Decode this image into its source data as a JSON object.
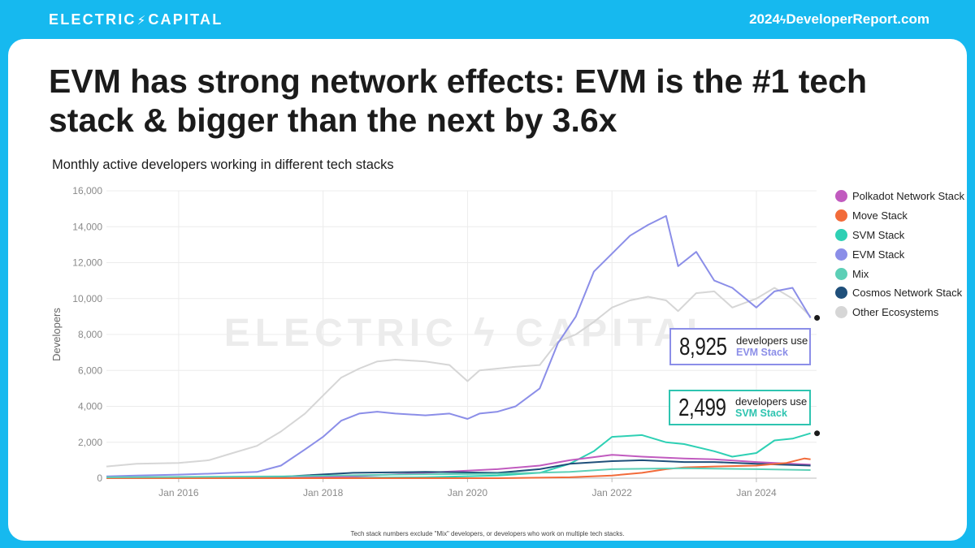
{
  "header": {
    "brand_left": "ELECTRIC",
    "brand_right": "CAPITAL",
    "brand_bolt": "⚡",
    "site_year": "2024",
    "site_domain": "DeveloperReport.com",
    "site_bolt": "ϟ"
  },
  "title": "EVM has strong network effects: EVM is the #1 tech stack & bigger than the next by 3.6x",
  "subtitle": "Monthly active developers working in different tech stacks",
  "footnote": "Tech stack numbers exclude \"Mix\" developers, or developers who work on multiple tech stacks.",
  "watermark": "ELECTRIC ϟ CAPITAL",
  "callouts": [
    {
      "value": "8,925",
      "line1": "developers use",
      "line2": "EVM Stack",
      "color": "#8b8ee8"
    },
    {
      "value": "2,499",
      "line1": "developers use",
      "line2": "SVM Stack",
      "color": "#2ec4b0"
    }
  ],
  "legend": [
    {
      "label": "Polkadot Network Stack",
      "color": "#c15bbf"
    },
    {
      "label": "Move Stack",
      "color": "#f26b3a"
    },
    {
      "label": "SVM Stack",
      "color": "#2ed0b4"
    },
    {
      "label": "EVM Stack",
      "color": "#8b8ee8"
    },
    {
      "label": "Mix",
      "color": "#5ccfb6"
    },
    {
      "label": "Cosmos Network Stack",
      "color": "#1f4f7a"
    },
    {
      "label": "Other Ecosystems",
      "color": "#d6d6d6"
    }
  ],
  "chart_data": {
    "type": "line",
    "title": "Monthly active developers working in different tech stacks",
    "xlabel": "",
    "ylabel": "Developers",
    "ylim": [
      0,
      16000
    ],
    "xlim": [
      "2015-01",
      "2024-11"
    ],
    "yticks": [
      "0",
      "2,000",
      "4,000",
      "6,000",
      "8,000",
      "10,000",
      "12,000",
      "14,000",
      "16,000"
    ],
    "xticks": [
      {
        "date": "2016-01",
        "label": "Jan 2016"
      },
      {
        "date": "2018-01",
        "label": "Jan 2018"
      },
      {
        "date": "2020-01",
        "label": "Jan 2020"
      },
      {
        "date": "2022-01",
        "label": "Jan 2022"
      },
      {
        "date": "2024-01",
        "label": "Jan 2024"
      }
    ],
    "grid": true,
    "legend_position": "right",
    "series": [
      {
        "name": "Other Ecosystems",
        "color": "#d6d6d6",
        "points": [
          [
            "2015-01",
            650
          ],
          [
            "2015-06",
            800
          ],
          [
            "2016-01",
            850
          ],
          [
            "2016-06",
            1000
          ],
          [
            "2016-10",
            1400
          ],
          [
            "2017-02",
            1800
          ],
          [
            "2017-06",
            2600
          ],
          [
            "2017-10",
            3600
          ],
          [
            "2018-01",
            4600
          ],
          [
            "2018-04",
            5600
          ],
          [
            "2018-07",
            6100
          ],
          [
            "2018-10",
            6500
          ],
          [
            "2019-01",
            6600
          ],
          [
            "2019-06",
            6500
          ],
          [
            "2019-10",
            6300
          ],
          [
            "2020-01",
            5400
          ],
          [
            "2020-03",
            6000
          ],
          [
            "2020-06",
            6100
          ],
          [
            "2020-09",
            6200
          ],
          [
            "2021-01",
            6300
          ],
          [
            "2021-04",
            7600
          ],
          [
            "2021-07",
            8000
          ],
          [
            "2021-10",
            8700
          ],
          [
            "2022-01",
            9500
          ],
          [
            "2022-04",
            9900
          ],
          [
            "2022-07",
            10100
          ],
          [
            "2022-10",
            9900
          ],
          [
            "2022-12",
            9300
          ],
          [
            "2023-03",
            10300
          ],
          [
            "2023-06",
            10400
          ],
          [
            "2023-09",
            9500
          ],
          [
            "2024-01",
            10000
          ],
          [
            "2024-04",
            10600
          ],
          [
            "2024-07",
            10000
          ],
          [
            "2024-10",
            9000
          ]
        ]
      },
      {
        "name": "EVM Stack",
        "color": "#8b8ee8",
        "points": [
          [
            "2015-01",
            100
          ],
          [
            "2015-06",
            150
          ],
          [
            "2016-01",
            200
          ],
          [
            "2016-06",
            250
          ],
          [
            "2016-10",
            300
          ],
          [
            "2017-02",
            350
          ],
          [
            "2017-06",
            700
          ],
          [
            "2017-10",
            1600
          ],
          [
            "2018-01",
            2300
          ],
          [
            "2018-04",
            3200
          ],
          [
            "2018-07",
            3600
          ],
          [
            "2018-10",
            3700
          ],
          [
            "2019-01",
            3600
          ],
          [
            "2019-06",
            3500
          ],
          [
            "2019-10",
            3600
          ],
          [
            "2020-01",
            3300
          ],
          [
            "2020-03",
            3600
          ],
          [
            "2020-06",
            3700
          ],
          [
            "2020-09",
            4000
          ],
          [
            "2021-01",
            5000
          ],
          [
            "2021-04",
            7500
          ],
          [
            "2021-07",
            9000
          ],
          [
            "2021-10",
            11500
          ],
          [
            "2022-01",
            12500
          ],
          [
            "2022-04",
            13500
          ],
          [
            "2022-07",
            14100
          ],
          [
            "2022-10",
            14600
          ],
          [
            "2022-12",
            11800
          ],
          [
            "2023-03",
            12600
          ],
          [
            "2023-06",
            11000
          ],
          [
            "2023-09",
            10600
          ],
          [
            "2024-01",
            9500
          ],
          [
            "2024-04",
            10400
          ],
          [
            "2024-07",
            10600
          ],
          [
            "2024-10",
            8925
          ]
        ]
      },
      {
        "name": "SVM Stack",
        "color": "#2ed0b4",
        "points": [
          [
            "2015-01",
            0
          ],
          [
            "2017-01",
            0
          ],
          [
            "2019-06",
            50
          ],
          [
            "2020-06",
            150
          ],
          [
            "2021-01",
            300
          ],
          [
            "2021-06",
            800
          ],
          [
            "2021-10",
            1500
          ],
          [
            "2022-01",
            2300
          ],
          [
            "2022-06",
            2400
          ],
          [
            "2022-10",
            2000
          ],
          [
            "2023-01",
            1900
          ],
          [
            "2023-06",
            1500
          ],
          [
            "2023-09",
            1200
          ],
          [
            "2024-01",
            1400
          ],
          [
            "2024-04",
            2100
          ],
          [
            "2024-07",
            2200
          ],
          [
            "2024-10",
            2499
          ]
        ]
      },
      {
        "name": "Polkadot Network Stack",
        "color": "#c15bbf",
        "points": [
          [
            "2015-01",
            0
          ],
          [
            "2017-06",
            30
          ],
          [
            "2018-06",
            100
          ],
          [
            "2019-06",
            300
          ],
          [
            "2020-06",
            500
          ],
          [
            "2021-01",
            700
          ],
          [
            "2021-06",
            1000
          ],
          [
            "2022-01",
            1300
          ],
          [
            "2022-06",
            1200
          ],
          [
            "2023-01",
            1100
          ],
          [
            "2023-06",
            1050
          ],
          [
            "2024-01",
            900
          ],
          [
            "2024-10",
            750
          ]
        ]
      },
      {
        "name": "Cosmos Network Stack",
        "color": "#1f4f7a",
        "points": [
          [
            "2015-01",
            0
          ],
          [
            "2017-06",
            80
          ],
          [
            "2018-06",
            300
          ],
          [
            "2019-06",
            350
          ],
          [
            "2020-06",
            300
          ],
          [
            "2021-01",
            500
          ],
          [
            "2021-06",
            800
          ],
          [
            "2022-01",
            950
          ],
          [
            "2022-06",
            1000
          ],
          [
            "2023-01",
            900
          ],
          [
            "2023-06",
            900
          ],
          [
            "2024-01",
            800
          ],
          [
            "2024-10",
            700
          ]
        ]
      },
      {
        "name": "Move Stack",
        "color": "#f26b3a",
        "points": [
          [
            "2015-01",
            0
          ],
          [
            "2020-06",
            0
          ],
          [
            "2021-06",
            50
          ],
          [
            "2022-01",
            150
          ],
          [
            "2022-06",
            300
          ],
          [
            "2022-10",
            500
          ],
          [
            "2023-01",
            600
          ],
          [
            "2023-06",
            650
          ],
          [
            "2024-01",
            700
          ],
          [
            "2024-06",
            850
          ],
          [
            "2024-09",
            1100
          ],
          [
            "2024-10",
            1050
          ]
        ]
      },
      {
        "name": "Mix",
        "color": "#5ccfb6",
        "points": [
          [
            "2015-01",
            50
          ],
          [
            "2017-06",
            100
          ],
          [
            "2019-01",
            200
          ],
          [
            "2020-06",
            250
          ],
          [
            "2021-06",
            350
          ],
          [
            "2022-01",
            500
          ],
          [
            "2023-01",
            550
          ],
          [
            "2024-01",
            500
          ],
          [
            "2024-10",
            450
          ]
        ]
      }
    ]
  }
}
